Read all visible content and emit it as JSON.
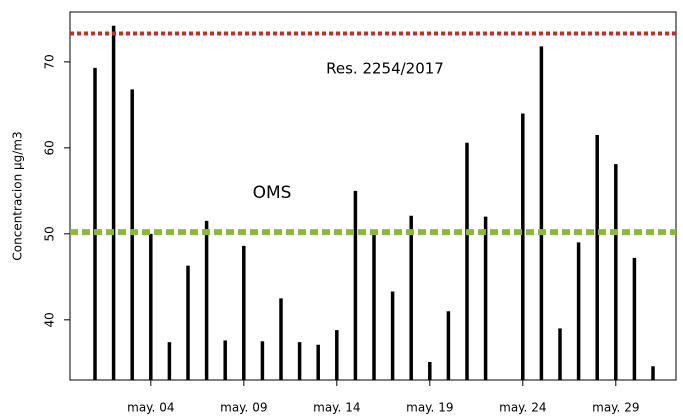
{
  "chart_data": {
    "type": "bar",
    "y_label": "Concentracion µg/m3",
    "categories": [
      null,
      null,
      null,
      "may. 04",
      null,
      null,
      null,
      null,
      "may. 09",
      null,
      null,
      null,
      null,
      "may. 14",
      null,
      null,
      null,
      null,
      "may. 19",
      null,
      null,
      null,
      null,
      "may. 24",
      null,
      null,
      null,
      null,
      "may. 29",
      null,
      null
    ],
    "values": [
      69.3,
      74.2,
      66.8,
      50.0,
      37.4,
      46.3,
      51.5,
      37.6,
      48.6,
      37.5,
      42.5,
      37.4,
      37.1,
      38.8,
      55.0,
      50.0,
      43.3,
      52.1,
      35.1,
      41.0,
      60.6,
      52.0,
      null,
      64.0,
      71.8,
      39.0,
      49.0,
      61.5,
      58.1,
      47.2,
      34.6
    ],
    "color": "#000000",
    "ylim": [
      33,
      75.8
    ],
    "yticks": [
      40,
      50,
      60,
      70
    ],
    "grid": false,
    "reference_lines": [
      {
        "value": 73.3,
        "color": "#c0312b",
        "label": "Res. 2254/2017"
      },
      {
        "value": 50.2,
        "color": "#8db83c",
        "label": "OMS"
      }
    ]
  }
}
